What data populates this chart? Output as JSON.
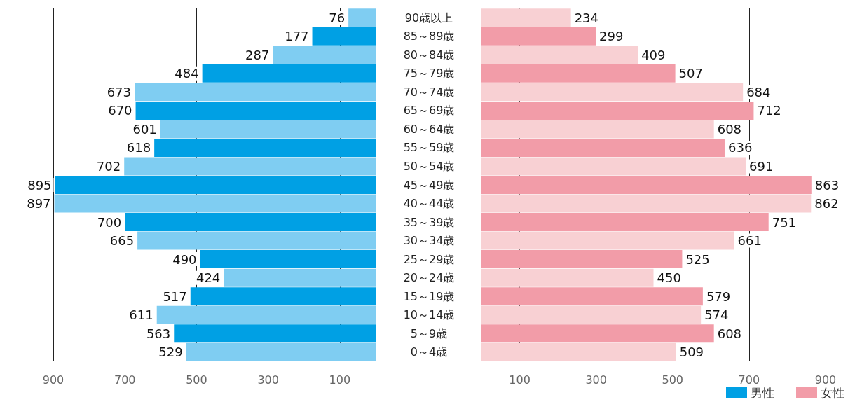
{
  "chart_data": [
    {
      "type": "bar",
      "orientation": "horizontal",
      "categories": [
        null,
        null,
        null,
        null,
        null,
        null,
        null,
        null,
        null,
        null,
        null,
        null,
        null,
        null,
        null,
        null,
        null,
        null,
        null
      ],
      "series": [
        {
          "name": "男性",
          "color": "#00a0e4",
          "colors": [
            "#7fcdf2",
            "#00a0e4",
            "#7fcdf2",
            "#00a0e4",
            "#7fcdf2",
            "#00a0e4",
            "#7fcdf2",
            "#00a0e4",
            "#7fcdf2",
            "#00a0e4",
            "#7fcdf2",
            "#00a0e4",
            "#7fcdf2",
            "#00a0e4",
            "#7fcdf2",
            "#00a0e4",
            "#7fcdf2",
            "#00a0e4",
            "#7fcdf2"
          ],
          "values": [
            76,
            177,
            287,
            484,
            673,
            670,
            601,
            618,
            702,
            895,
            897,
            700,
            665,
            490,
            424,
            517,
            611,
            563,
            529
          ]
        }
      ],
      "xlim": [
        900,
        0
      ],
      "xticks": [
        900,
        700,
        500,
        300,
        100
      ],
      "grid": "x",
      "data_labels": true,
      "legend": "bottom right"
    },
    {
      "type": "bar",
      "orientation": "horizontal",
      "categories": [
        "90歳以上",
        "85～89歳",
        "80～84歳",
        "75～79歳",
        "70～74歳",
        "65～69歳",
        "60～64歳",
        "55～59歳",
        "50～54歳",
        "45～49歳",
        "40～44歳",
        "35～39歳",
        "30～34歳",
        "25～29歳",
        "20～24歳",
        "15～19歳",
        "10～14歳",
        "5～9歳",
        "0～4歳"
      ],
      "series": [
        {
          "name": "女性",
          "color": "#f29ca8",
          "colors": [
            "#f8d0d3",
            "#f29ca8",
            "#f8d0d3",
            "#f29ca8",
            "#f8d0d3",
            "#f29ca8",
            "#f8d0d3",
            "#f29ca8",
            "#f8d0d3",
            "#f29ca8",
            "#f8d0d3",
            "#f29ca8",
            "#f8d0d3",
            "#f29ca8",
            "#f8d0d3",
            "#f29ca8",
            "#f8d0d3",
            "#f29ca8",
            "#f8d0d3"
          ],
          "values": [
            234,
            299,
            409,
            507,
            684,
            712,
            608,
            636,
            691,
            863,
            862,
            751,
            661,
            525,
            450,
            579,
            574,
            608,
            509
          ]
        }
      ],
      "xlim": [
        0,
        900
      ],
      "xticks": [
        100,
        300,
        500,
        700,
        900
      ],
      "grid": "x",
      "data_labels": true,
      "legend": "bottom right"
    }
  ]
}
